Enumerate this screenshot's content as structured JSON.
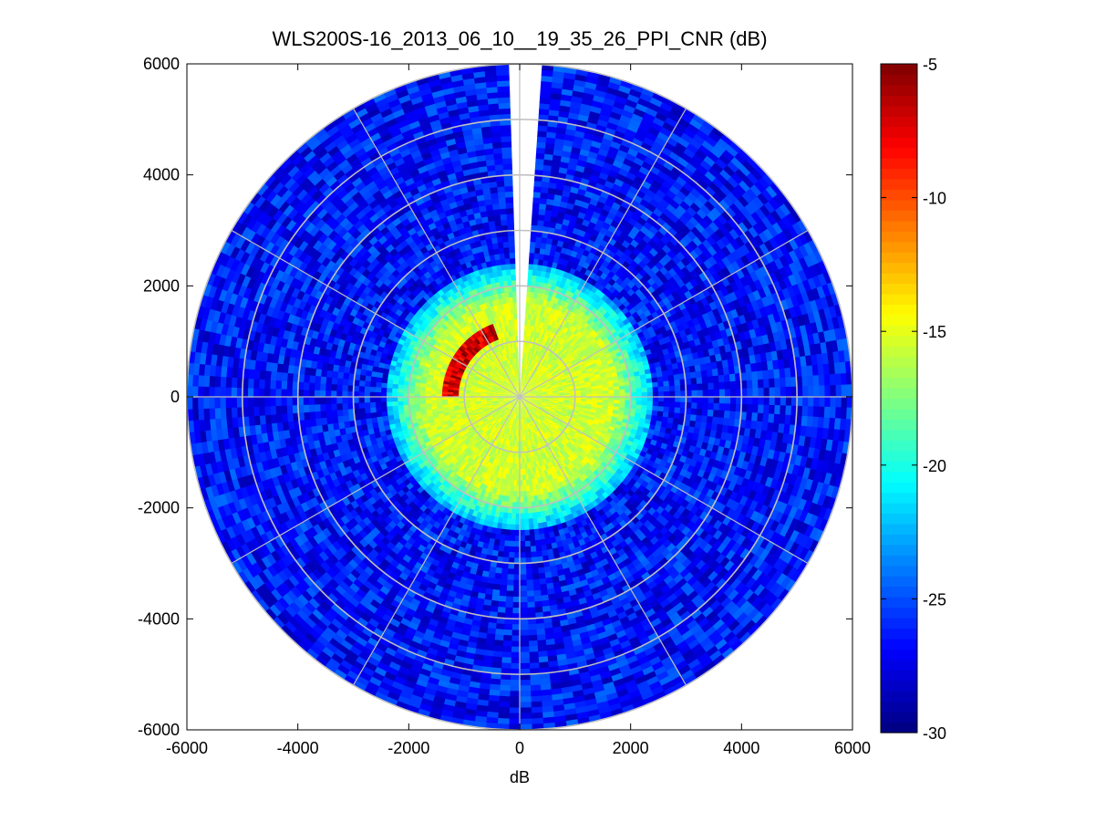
{
  "chart_data": {
    "type": "heatmap",
    "subtype": "polar-ppi",
    "title": "WLS200S-16_2013_06_10__19_35_26_PPI_CNR (dB)",
    "xlabel": "dB",
    "ylabel": "",
    "xlim": [
      -6000,
      6000
    ],
    "ylim": [
      -6000,
      6000
    ],
    "x_ticks": [
      -6000,
      -4000,
      -2000,
      0,
      2000,
      4000,
      6000
    ],
    "y_ticks": [
      6000,
      4000,
      2000,
      0,
      -2000,
      -4000,
      -6000
    ],
    "x_tick_labels": [
      "-6000",
      "-4000",
      "-2000",
      "0",
      "2000",
      "4000",
      "6000"
    ],
    "y_tick_labels": [
      "6000",
      "4000",
      "2000",
      "0",
      "-2000",
      "-4000",
      "-6000"
    ],
    "polar_grid": {
      "ring_radii": [
        1000,
        2000,
        3000,
        4000,
        5000,
        6000
      ],
      "spoke_angles_deg": [
        0,
        30,
        60,
        90,
        120,
        150,
        180,
        210,
        240,
        270,
        300,
        330
      ],
      "color": "#c0c0c0"
    },
    "scan": {
      "max_range": 6000,
      "range_gate": 100,
      "azimuth_step_deg": 2,
      "gap_azimuth_deg": [
        358,
        4
      ]
    },
    "colorbar": {
      "colormap": "jet",
      "clim": [
        -30,
        -5
      ],
      "ticks": [
        -5,
        -10,
        -15,
        -20,
        -25,
        -30
      ],
      "tick_labels": [
        "-5",
        "-10",
        "-15",
        "-20",
        "-25",
        "-30"
      ]
    },
    "cnr_profile": {
      "near_field_cnr": -15.5,
      "near_field_range": 1700,
      "transition_range": 2400,
      "far_field_cnr": -26.5,
      "peak_cnr": -5,
      "high_cnr_arc": {
        "range": 1250,
        "azimuth_deg": [
          270,
          340
        ]
      }
    }
  }
}
